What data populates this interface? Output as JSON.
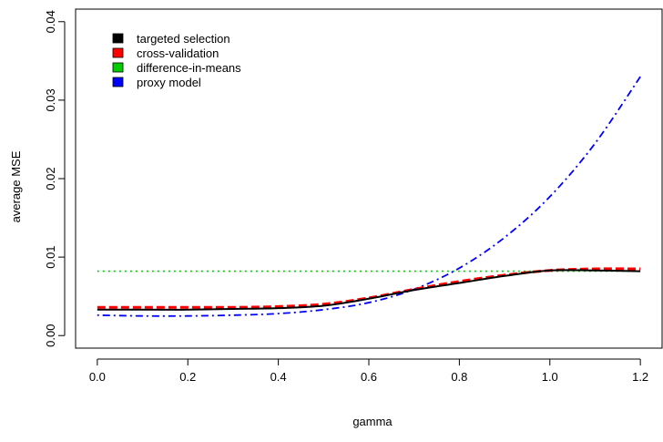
{
  "chart_data": {
    "type": "line",
    "xlabel": "gamma",
    "ylabel": "average MSE",
    "xlim": [
      -0.048,
      1.248
    ],
    "ylim": [
      -0.0016,
      0.0416
    ],
    "x_ticks": [
      "0.0",
      "0.2",
      "0.4",
      "0.6",
      "0.8",
      "1.0",
      "1.2"
    ],
    "x_tick_values": [
      0.0,
      0.2,
      0.4,
      0.6,
      0.8,
      1.0,
      1.2
    ],
    "y_ticks": [
      "0.00",
      "0.01",
      "0.02",
      "0.03",
      "0.04"
    ],
    "y_tick_values": [
      0.0,
      0.01,
      0.02,
      0.03,
      0.04
    ],
    "grid": false,
    "legend_position": "top-left",
    "x": [
      0.0,
      0.1,
      0.2,
      0.3,
      0.4,
      0.5,
      0.6,
      0.7,
      0.8,
      0.9,
      1.0,
      1.1,
      1.2
    ],
    "series": [
      {
        "name": "targeted selection",
        "color": "#000000",
        "linestyle": "solid",
        "values": [
          0.0033,
          0.0033,
          0.0033,
          0.0034,
          0.0035,
          0.0038,
          0.0047,
          0.0058,
          0.0067,
          0.0076,
          0.0083,
          0.0083,
          0.0082
        ]
      },
      {
        "name": "cross-validation",
        "color": "#ff0000",
        "linestyle": "dashed",
        "values": [
          0.0036,
          0.0036,
          0.0036,
          0.0036,
          0.0037,
          0.004,
          0.0048,
          0.0059,
          0.0069,
          0.0077,
          0.0083,
          0.0085,
          0.0085
        ]
      },
      {
        "name": "difference-in-means",
        "color": "#00cd00",
        "linestyle": "dotted",
        "values": [
          0.0082,
          0.0082,
          0.0082,
          0.0082,
          0.0082,
          0.0082,
          0.0082,
          0.0082,
          0.0082,
          0.0082,
          0.0082,
          0.0082,
          0.0082
        ]
      },
      {
        "name": "proxy model",
        "color": "#0000ff",
        "linestyle": "dotdash",
        "values": [
          0.0026,
          0.0025,
          0.0025,
          0.0026,
          0.0028,
          0.0033,
          0.0042,
          0.0059,
          0.0086,
          0.0125,
          0.0177,
          0.0245,
          0.033
        ]
      }
    ]
  }
}
